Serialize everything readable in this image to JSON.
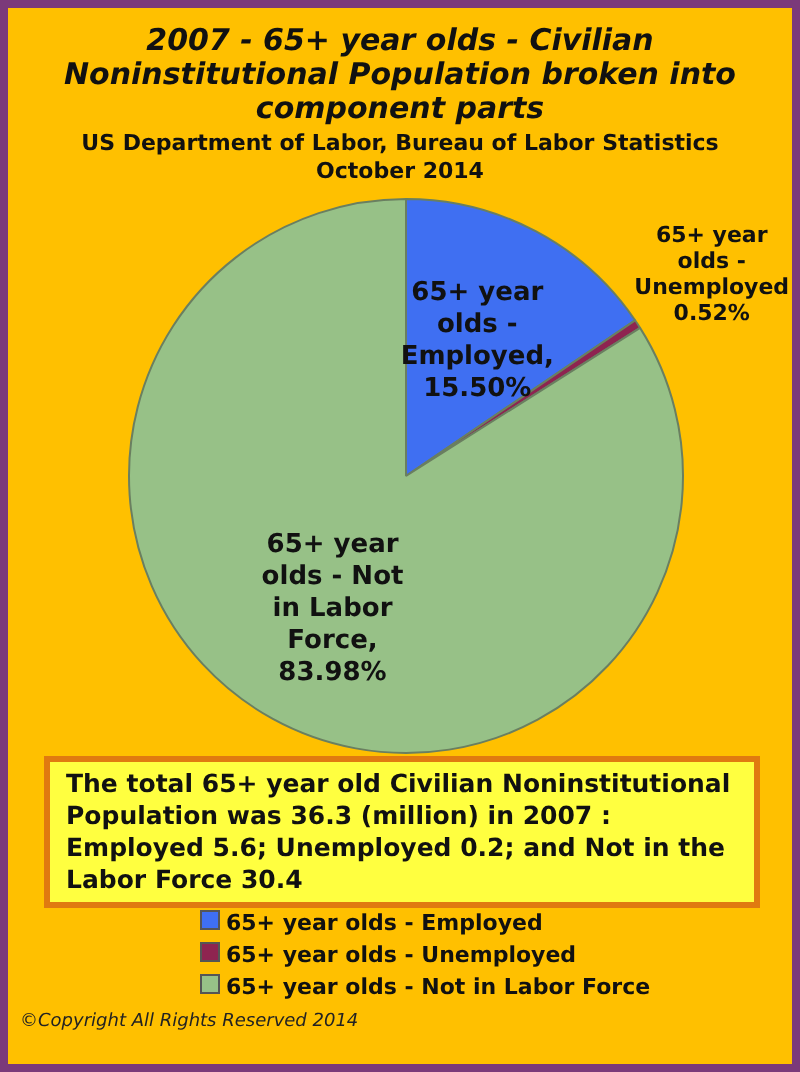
{
  "chart_data": {
    "type": "pie",
    "title": "2007 - 65+ year olds - Civilian Noninstitutional Population broken into component parts",
    "subtitle": "US Department of Labor, Bureau of Labor Statistics October 2014",
    "categories": [
      "65+ year olds - Employed",
      "65+ year olds - Unemployed",
      "65+ year olds - Not in Labor Force"
    ],
    "values": [
      15.5,
      0.52,
      83.98
    ],
    "value_labels": [
      ", 15.50%",
      "0.52%",
      ", 83.98%"
    ],
    "colors": [
      "#3f6ff2",
      "#8e2450",
      "#97c187"
    ],
    "legend": "bottom",
    "annotations": [
      "The total  65+ year old Civilian Noninstitutional Population was 36.3 (million) in 2007 : Employed 5.6; Unemployed 0.2; and Not in the Labor Force 30.4",
      "©Copyright All Rights Reserved 2014"
    ]
  }
}
